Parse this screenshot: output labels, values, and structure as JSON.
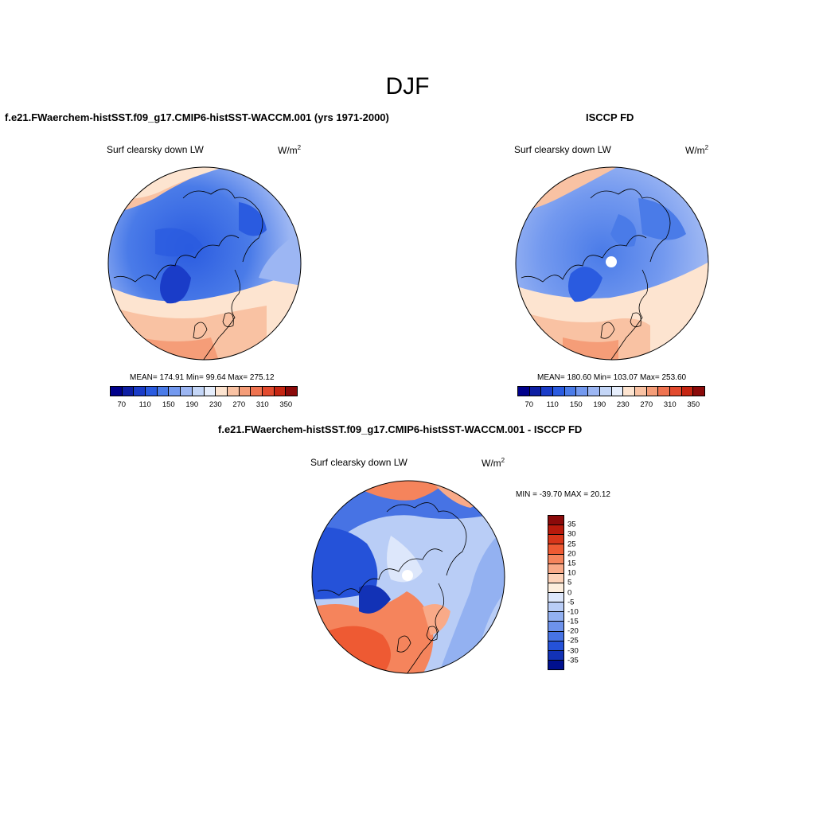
{
  "title": "DJF",
  "panels": [
    {
      "title": "f.e21.FWaerchem-histSST.f09_g17.CMIP6-histSST-WACCM.001 (yrs 1971-2000)",
      "variable": "Surf clearsky down LW",
      "units": "W/m",
      "units_sup": "2",
      "stats": "MEAN= 174.91  Min=  99.64  Max= 275.12",
      "has_pole_hole": false
    },
    {
      "title": "ISCCP FD",
      "variable": "Surf clearsky down LW",
      "units": "W/m",
      "units_sup": "2",
      "stats": "MEAN= 180.60  Min= 103.07  Max= 253.60",
      "has_pole_hole": true
    },
    {
      "title": "f.e21.FWaerchem-histSST.f09_g17.CMIP6-histSST-WACCM.001 - ISCCP FD",
      "variable": "Surf clearsky down LW",
      "units": "W/m",
      "units_sup": "2",
      "stats": "MIN = -39.70 MAX =  20.12",
      "has_pole_hole": true
    }
  ],
  "colorbar_abs": {
    "colors": [
      "#00008b",
      "#0d1ea3",
      "#1a3cc8",
      "#2a5be0",
      "#4a7be8",
      "#7399ef",
      "#9cb6f3",
      "#c4d6f7",
      "#e6eefc",
      "#fde4d0",
      "#f9c2a3",
      "#f59d78",
      "#ef7350",
      "#e24a2e",
      "#c52512",
      "#8b0a0a"
    ],
    "ticks": [
      "70",
      "110",
      "150",
      "190",
      "230",
      "270",
      "310",
      "350"
    ]
  },
  "colorbar_diff": {
    "colors": [
      "#8b0a0a",
      "#b81a0c",
      "#d8361a",
      "#ee5a33",
      "#f5845c",
      "#f9aa88",
      "#fdd2b8",
      "#fdeedd",
      "#dde7fb",
      "#b9cdf6",
      "#93b1f1",
      "#6d92eb",
      "#4773e4",
      "#2552d9",
      "#1232b6",
      "#00108f"
    ],
    "ticks": [
      "35",
      "30",
      "25",
      "20",
      "15",
      "10",
      "5",
      "0",
      "-5",
      "-10",
      "-15",
      "-20",
      "-25",
      "-30",
      "-35"
    ]
  }
}
